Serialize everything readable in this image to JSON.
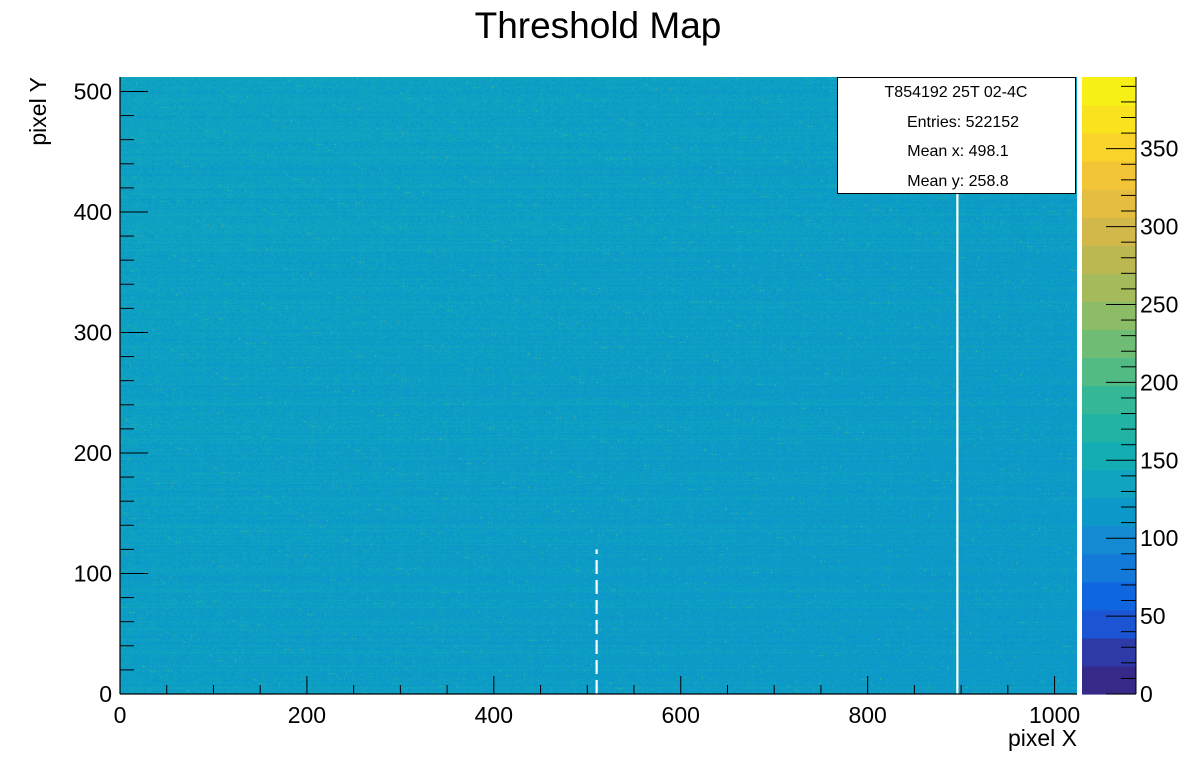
{
  "chart_data": {
    "type": "heatmap",
    "title": "Threshold Map",
    "xlabel": "pixel X",
    "ylabel": "pixel Y",
    "xlim": [
      0,
      1024
    ],
    "ylim": [
      0,
      512
    ],
    "x_ticks": [
      0,
      200,
      400,
      600,
      800,
      1000
    ],
    "y_ticks": [
      0,
      100,
      200,
      300,
      400,
      500
    ],
    "z_range": [
      0,
      396
    ],
    "z_ticks": [
      0,
      50,
      100,
      150,
      200,
      250,
      300,
      350
    ],
    "typical_value": 125,
    "palette": [
      "#352a87",
      "#2d3aa8",
      "#1c55d4",
      "#0f66de",
      "#137ad9",
      "#138ad2",
      "#0c98c8",
      "#10a4c0",
      "#14adb4",
      "#22b3a4",
      "#35b897",
      "#52bb85",
      "#6fbc74",
      "#8cbc66",
      "#a5bb5b",
      "#bcb851",
      "#d2b84b",
      "#e5bd40",
      "#f3c435",
      "#f9d22a",
      "#f9e21e",
      "#f7f016"
    ],
    "dead_columns": [
      {
        "x": 510,
        "y_range": [
          0,
          120
        ],
        "style": "dashed"
      },
      {
        "x": 896,
        "y_range": [
          0,
          425
        ],
        "style": "solid"
      }
    ],
    "legend": {
      "name": "T854192 25T 02-4C",
      "entries_label": "Entries:",
      "entries": "522152",
      "mean_x_label": "Mean x:",
      "mean_x": "498.1",
      "mean_y_label": "Mean y:",
      "mean_y": "258.8",
      "position": "top-right"
    }
  }
}
